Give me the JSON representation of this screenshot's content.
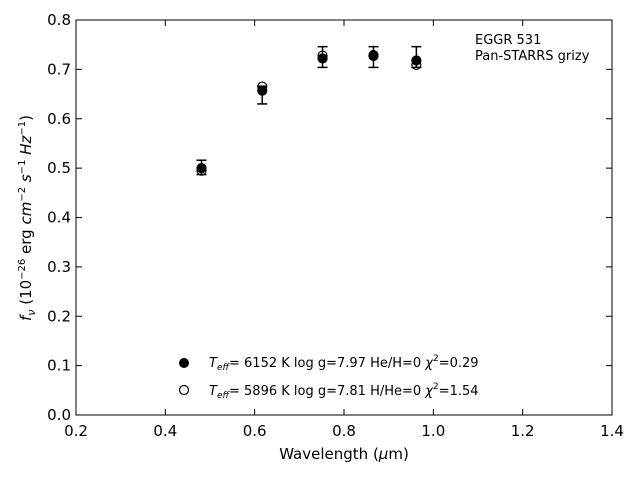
{
  "chart_data": {
    "type": "scatter",
    "annotations": [
      "EGGR 531",
      "Pan-STARRS grizy"
    ],
    "xlabel": "Wavelength (μm)",
    "ylabel": "f_ν (10^-26 erg cm^-2 s^-1 Hz^-1)",
    "xlim": [
      0.2,
      1.4
    ],
    "ylim": [
      0.0,
      0.8
    ],
    "xticks": [
      0.2,
      0.4,
      0.6,
      0.8,
      1.0,
      1.2,
      1.4
    ],
    "yticks": [
      0.0,
      0.1,
      0.2,
      0.3,
      0.4,
      0.5,
      0.6,
      0.7,
      0.8
    ],
    "grid": false,
    "legend_position": "bottom-center",
    "observed": {
      "x": [
        0.481,
        0.617,
        0.752,
        0.866,
        0.962
      ],
      "y": [
        0.503,
        0.648,
        0.725,
        0.725,
        0.725
      ],
      "yerr_low": [
        0.487,
        0.63,
        0.704,
        0.704,
        0.704
      ],
      "yerr_high": [
        0.516,
        0.666,
        0.746,
        0.746,
        0.746
      ]
    },
    "series": [
      {
        "name": "T_eff= 6152 K log g=7.97 He/H=0 χ²=0.29",
        "marker": "filled-circle",
        "color": "#000000",
        "x": [
          0.481,
          0.617,
          0.752,
          0.866,
          0.962
        ],
        "y": [
          0.5,
          0.657,
          0.722,
          0.729,
          0.718
        ]
      },
      {
        "name": "T_eff= 5896 K log g=7.81 H/He=0 χ²=1.54",
        "marker": "open-circle",
        "color": "#000000",
        "x": [
          0.481,
          0.617,
          0.752,
          0.866,
          0.962
        ],
        "y": [
          0.495,
          0.665,
          0.728,
          0.727,
          0.709
        ]
      }
    ]
  }
}
